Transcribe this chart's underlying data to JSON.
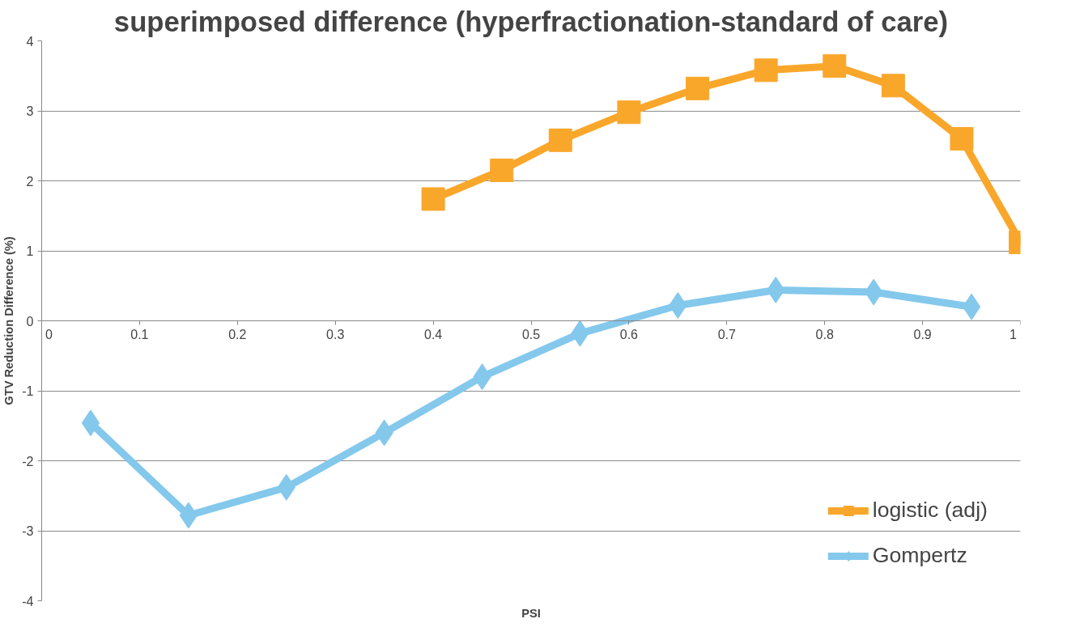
{
  "chart_data": {
    "type": "line",
    "title": "superimposed difference (hyperfractionation-standard of care)",
    "xlabel": "PSI",
    "ylabel": "GTV Reduction Difference (%)",
    "xlim": [
      0,
      1
    ],
    "xticks": [
      0,
      0.1,
      0.2,
      0.3,
      0.4,
      0.5,
      0.6,
      0.7,
      0.8,
      0.9,
      1
    ],
    "ylim": [
      -4,
      4
    ],
    "yticks": [
      -4,
      -3,
      -2,
      -1,
      0,
      1,
      2,
      3,
      4
    ],
    "grid": "y",
    "legend": "bottom right",
    "series": [
      {
        "name": "logistic (adj)",
        "color": "#f9a72b",
        "marker": "square",
        "x": [
          0.4,
          0.47,
          0.53,
          0.6,
          0.67,
          0.74,
          0.81,
          0.87,
          0.94,
          1.0
        ],
        "values": [
          1.74,
          2.15,
          2.58,
          2.98,
          3.32,
          3.58,
          3.64,
          3.36,
          2.6,
          1.12
        ]
      },
      {
        "name": "Gompertz",
        "color": "#84c8ec",
        "marker": "diamond",
        "x": [
          0.05,
          0.15,
          0.25,
          0.35,
          0.45,
          0.55,
          0.65,
          0.75,
          0.85,
          0.95
        ],
        "values": [
          -1.46,
          -2.78,
          -2.38,
          -1.6,
          -0.8,
          -0.18,
          0.22,
          0.44,
          0.41,
          0.2
        ]
      }
    ]
  }
}
